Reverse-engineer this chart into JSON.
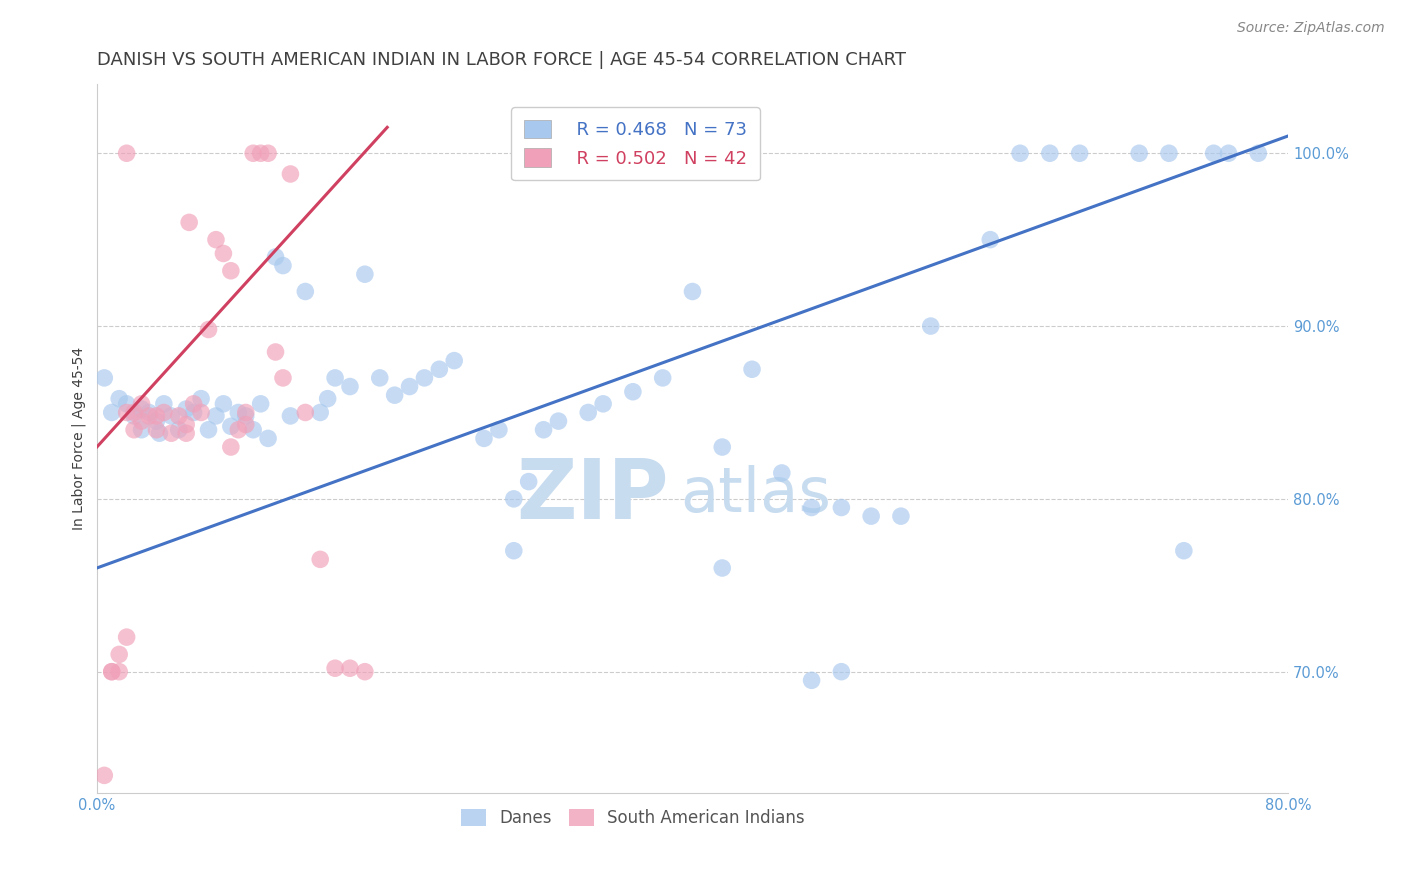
{
  "title": "DANISH VS SOUTH AMERICAN INDIAN IN LABOR FORCE | AGE 45-54 CORRELATION CHART",
  "source": "Source: ZipAtlas.com",
  "ylabel": "In Labor Force | Age 45-54",
  "watermark_zip": "ZIP",
  "watermark_atlas": "atlas",
  "danes_color": "#A8C8EE",
  "sam_color": "#F0A0B8",
  "danes_line_color": "#4472C4",
  "sam_line_color": "#D04060",
  "danes_R": 0.468,
  "danes_N": 73,
  "sam_R": 0.502,
  "sam_N": 42,
  "xlim": [
    0.0,
    0.8
  ],
  "ylim": [
    0.63,
    1.04
  ],
  "xticks": [
    0.0,
    0.1,
    0.2,
    0.3,
    0.4,
    0.5,
    0.6,
    0.7,
    0.8
  ],
  "xticklabels": [
    "0.0%",
    "",
    "",
    "",
    "",
    "",
    "",
    "",
    "80.0%"
  ],
  "ytick_positions": [
    0.7,
    0.8,
    0.9,
    1.0
  ],
  "yticklabels": [
    "70.0%",
    "80.0%",
    "90.0%",
    "100.0%"
  ],
  "danes_scatter_x": [
    0.005,
    0.01,
    0.015,
    0.02,
    0.025,
    0.03,
    0.03,
    0.035,
    0.04,
    0.042,
    0.045,
    0.05,
    0.055,
    0.06,
    0.065,
    0.07,
    0.075,
    0.08,
    0.085,
    0.09,
    0.095,
    0.1,
    0.105,
    0.11,
    0.115,
    0.12,
    0.125,
    0.13,
    0.14,
    0.15,
    0.155,
    0.16,
    0.17,
    0.18,
    0.19,
    0.2,
    0.21,
    0.22,
    0.23,
    0.24,
    0.26,
    0.27,
    0.28,
    0.29,
    0.3,
    0.31,
    0.33,
    0.34,
    0.36,
    0.38,
    0.4,
    0.42,
    0.44,
    0.46,
    0.48,
    0.5,
    0.52,
    0.54,
    0.56,
    0.6,
    0.62,
    0.64,
    0.66,
    0.7,
    0.72,
    0.75,
    0.78,
    0.73,
    0.76,
    0.5,
    0.42,
    0.28,
    0.48
  ],
  "danes_scatter_y": [
    0.87,
    0.85,
    0.858,
    0.855,
    0.848,
    0.852,
    0.84,
    0.85,
    0.845,
    0.838,
    0.855,
    0.848,
    0.84,
    0.852,
    0.85,
    0.858,
    0.84,
    0.848,
    0.855,
    0.842,
    0.85,
    0.848,
    0.84,
    0.855,
    0.835,
    0.94,
    0.935,
    0.848,
    0.92,
    0.85,
    0.858,
    0.87,
    0.865,
    0.93,
    0.87,
    0.86,
    0.865,
    0.87,
    0.875,
    0.88,
    0.835,
    0.84,
    0.8,
    0.81,
    0.84,
    0.845,
    0.85,
    0.855,
    0.862,
    0.87,
    0.92,
    0.83,
    0.875,
    0.815,
    0.795,
    0.795,
    0.79,
    0.79,
    0.9,
    0.95,
    1.0,
    1.0,
    1.0,
    1.0,
    1.0,
    1.0,
    1.0,
    0.77,
    1.0,
    0.7,
    0.76,
    0.77,
    0.695
  ],
  "sam_scatter_x": [
    0.005,
    0.01,
    0.015,
    0.02,
    0.02,
    0.025,
    0.025,
    0.03,
    0.03,
    0.035,
    0.04,
    0.04,
    0.045,
    0.05,
    0.055,
    0.06,
    0.062,
    0.065,
    0.07,
    0.075,
    0.08,
    0.085,
    0.09,
    0.095,
    0.1,
    0.105,
    0.11,
    0.115,
    0.12,
    0.125,
    0.13,
    0.14,
    0.15,
    0.16,
    0.17,
    0.18,
    0.01,
    0.015,
    0.09,
    0.1,
    0.02,
    0.06
  ],
  "sam_scatter_y": [
    0.64,
    0.7,
    0.71,
    0.72,
    0.85,
    0.84,
    0.85,
    0.845,
    0.855,
    0.848,
    0.84,
    0.848,
    0.85,
    0.838,
    0.848,
    0.838,
    0.96,
    0.855,
    0.85,
    0.898,
    0.95,
    0.942,
    0.932,
    0.84,
    0.85,
    1.0,
    1.0,
    1.0,
    0.885,
    0.87,
    0.988,
    0.85,
    0.765,
    0.702,
    0.702,
    0.7,
    0.7,
    0.7,
    0.83,
    0.843,
    1.0,
    0.843
  ],
  "danes_line_x": [
    0.0,
    0.8
  ],
  "danes_line_y": [
    0.76,
    1.01
  ],
  "sam_line_x": [
    0.0,
    0.195
  ],
  "sam_line_y": [
    0.83,
    1.015
  ],
  "background_color": "#FFFFFF",
  "grid_color": "#CCCCCC",
  "tick_color": "#5B9BD5",
  "title_color": "#404040",
  "title_fontsize": 13,
  "axis_label_fontsize": 10,
  "tick_fontsize": 10.5,
  "legend_fontsize": 13,
  "watermark_fontsize": 60,
  "source_fontsize": 10
}
